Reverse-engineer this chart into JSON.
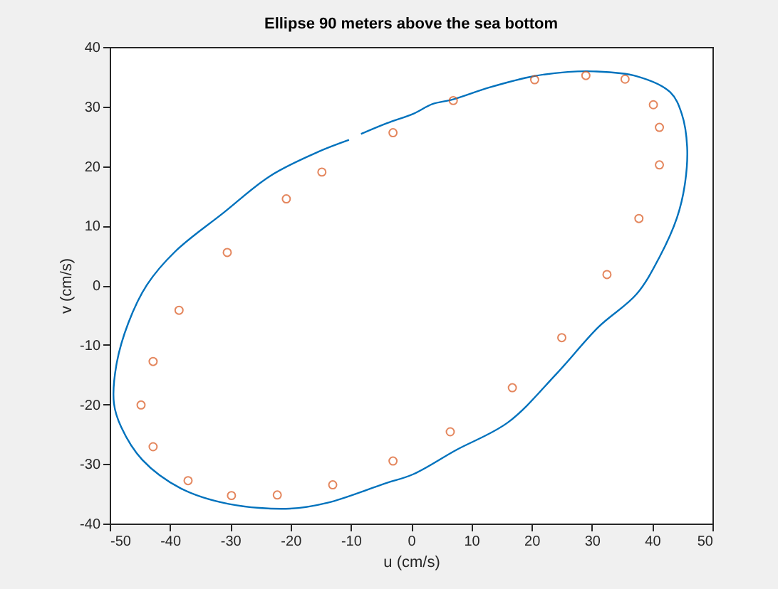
{
  "chart_data": {
    "type": "line",
    "title": "Ellipse 90 meters above the sea bottom",
    "xlabel": "u (cm/s)",
    "ylabel": "v (cm/s)",
    "xlim": [
      -50,
      50
    ],
    "xticks": [
      -50,
      -40,
      -30,
      -20,
      -10,
      0,
      10,
      20,
      30,
      40,
      50
    ],
    "ylim": [
      -40,
      40
    ],
    "yticks": [
      -40,
      -30,
      -20,
      -10,
      0,
      10,
      20,
      30,
      40
    ],
    "grid": false,
    "series": [
      {
        "color": "#0072bd",
        "x": [
          -8.3,
          -4,
          0.4,
          3.5,
          7,
          13,
          20.4,
          26,
          30.3,
          37.4,
          43,
          44.9,
          45.8,
          45.4,
          44.1,
          41.3,
          37.4,
          31.1,
          24,
          16.1,
          7.4,
          0.4,
          -4.4,
          -13.8,
          -20.1,
          -30.3,
          -38.2,
          -44.6,
          -48.1,
          -49.3,
          -48.9,
          -46.9,
          -43.8,
          -39.1,
          -31.2,
          -23.3,
          -15.4,
          -10.3
        ],
        "values": [
          25.4,
          27.2,
          28.8,
          30.4,
          31.2,
          33.2,
          35.1,
          35.8,
          35.9,
          35.1,
          32.4,
          28.8,
          23.2,
          16.8,
          11.3,
          4.9,
          -1.5,
          -7,
          -15,
          -23,
          -27.7,
          -31.7,
          -33.3,
          -36.5,
          -37.5,
          -36.7,
          -34.1,
          -29.3,
          -23.8,
          -19.8,
          -13.4,
          -6.3,
          0.1,
          5.7,
          12.1,
          18.4,
          22.4,
          24.4
        ]
      },
      {
        "type": "scatter",
        "color": "#d95319",
        "marker": "circle",
        "x": [
          7,
          20.5,
          29,
          35.5,
          40.2,
          41.2,
          41.2,
          37.8,
          32.5,
          25,
          16.8,
          6.5,
          -3,
          -13,
          -22.2,
          -29.8,
          -37,
          -42.8,
          -44.8,
          -42.8,
          -38.5,
          -30.5,
          -20.7,
          -14.8,
          -3
        ],
        "values": [
          31,
          34.5,
          35.2,
          34.6,
          30.3,
          26.5,
          20.2,
          11.2,
          1.8,
          -8.8,
          -17.2,
          -24.6,
          -29.5,
          -33.5,
          -35.2,
          -35.3,
          -32.8,
          -27.1,
          -20.1,
          -12.8,
          -4.2,
          5.5,
          14.5,
          19,
          25.6
        ]
      }
    ]
  }
}
